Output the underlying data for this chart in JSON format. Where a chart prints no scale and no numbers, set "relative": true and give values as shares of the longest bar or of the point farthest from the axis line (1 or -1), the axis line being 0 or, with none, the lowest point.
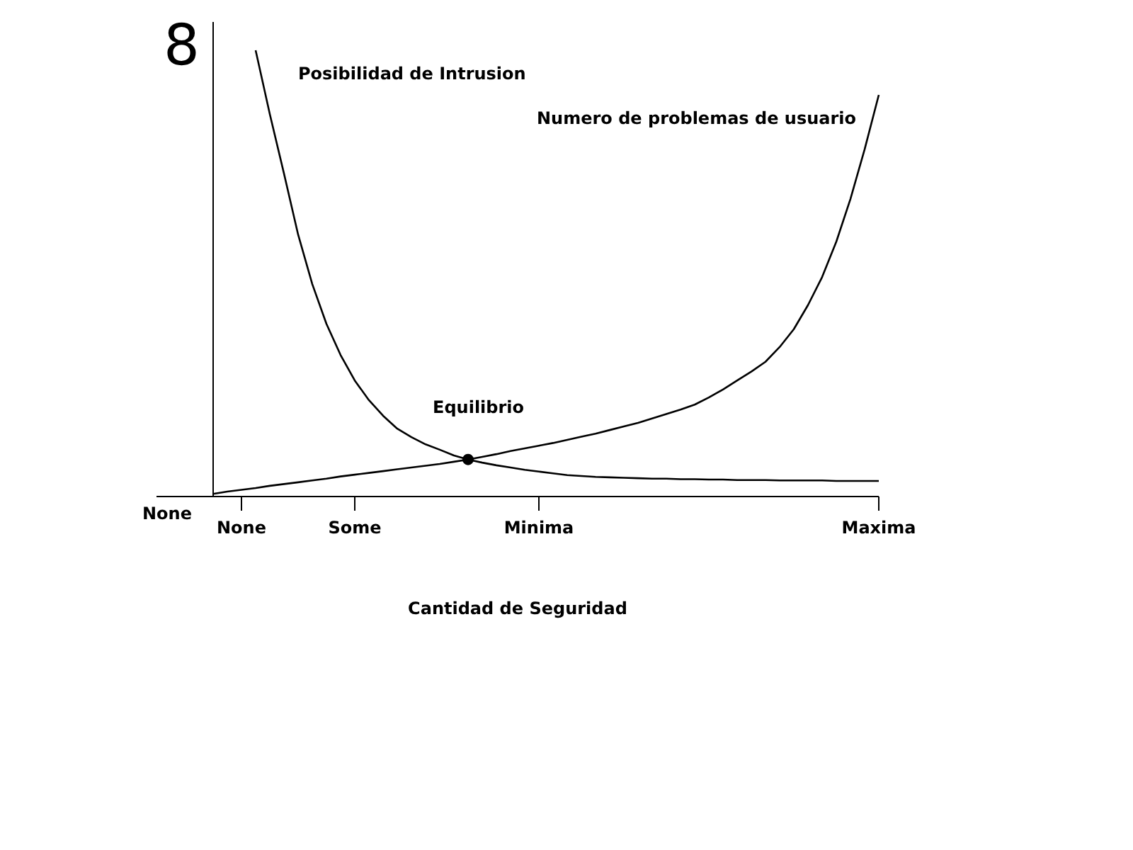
{
  "chart_data": {
    "type": "line",
    "relative": true,
    "xlabel": "Cantidad de Seguridad",
    "categories": [
      null,
      null,
      "None",
      null,
      null,
      null,
      null,
      null,
      null,
      null,
      "Some",
      null,
      null,
      null,
      null,
      null,
      null,
      null,
      null,
      null,
      null,
      null,
      null,
      "Minima",
      null,
      null,
      null,
      null,
      null,
      null,
      null,
      null,
      null,
      null,
      null,
      null,
      null,
      null,
      null,
      null,
      null,
      null,
      null,
      null,
      null,
      null,
      null,
      "Maxima"
    ],
    "series": [
      {
        "name": "Posibilidad de Intrusion",
        "color": "#000000",
        "values": [
          null,
          null,
          null,
          1,
          0.857,
          0.724,
          0.587,
          0.476,
          0.387,
          0.317,
          0.26,
          0.216,
          0.181,
          0.152,
          0.133,
          0.117,
          0.105,
          0.092,
          0.083,
          0.076,
          0.07,
          0.065,
          0.06,
          0.056,
          0.052,
          0.048,
          0.046,
          0.044,
          0.043,
          0.042,
          0.041,
          0.04,
          0.04,
          0.039,
          0.039,
          0.038,
          0.038,
          0.037,
          0.037,
          0.037,
          0.036,
          0.036,
          0.036,
          0.036,
          0.035,
          0.035,
          0.035,
          0.035
        ]
      },
      {
        "name": "Numero de problemas de usuario",
        "color": "#000000",
        "values": [
          0.006,
          0.011,
          0.015,
          0.019,
          0.024,
          0.028,
          0.032,
          0.036,
          0.04,
          0.045,
          0.049,
          0.053,
          0.057,
          0.061,
          0.065,
          0.069,
          0.073,
          0.078,
          0.083,
          0.089,
          0.095,
          0.102,
          0.108,
          0.114,
          0.12,
          0.127,
          0.134,
          0.141,
          0.149,
          0.157,
          0.165,
          0.175,
          0.185,
          0.195,
          0.206,
          0.222,
          0.24,
          0.26,
          0.28,
          0.302,
          0.335,
          0.375,
          0.429,
          0.492,
          0.571,
          0.667,
          0.778,
          0.9
        ]
      },
      {
        "type": "scatter",
        "color": "#000000",
        "marker": "circle",
        "values": [
          null,
          null,
          null,
          null,
          null,
          null,
          null,
          null,
          null,
          null,
          null,
          null,
          null,
          null,
          null,
          null,
          null,
          null,
          0.083,
          null,
          null,
          null,
          null,
          null,
          null,
          null,
          null,
          null,
          null,
          null,
          null,
          null,
          null,
          null,
          null,
          null,
          null,
          null,
          null,
          null,
          null,
          null,
          null,
          null,
          null,
          null,
          null,
          null
        ]
      }
    ],
    "annotations": [
      "Equilibrio",
      "8",
      "None"
    ],
    "legend": false
  }
}
